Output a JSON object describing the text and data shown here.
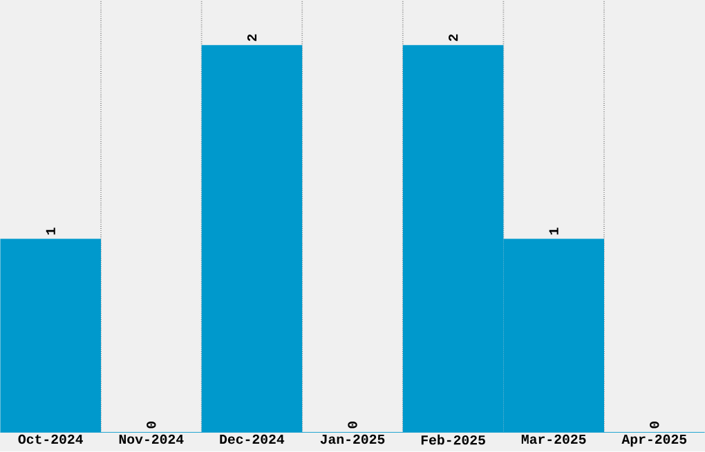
{
  "chart_data": {
    "type": "bar",
    "categories": [
      "Oct-2024",
      "Nov-2024",
      "Dec-2024",
      "Jan-2025",
      "Feb-2025",
      "Mar-2025",
      "Apr-2025"
    ],
    "values": [
      1,
      0,
      2,
      0,
      2,
      1,
      0
    ],
    "color": "#0099cc",
    "data_labels": true,
    "grid": "x",
    "tick_labels": "x"
  }
}
